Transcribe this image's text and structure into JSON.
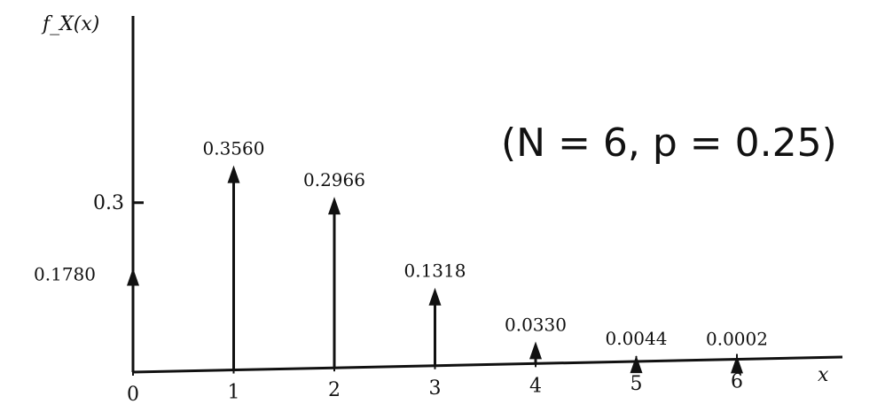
{
  "chart_data": {
    "type": "bar",
    "style": "impulse (stem) plot with arrowheads",
    "ylabel": "f_X(x)",
    "xlabel": "x",
    "annotation": "(N = 6, p = 0.25)",
    "x": [
      0,
      1,
      2,
      3,
      4,
      5,
      6
    ],
    "values": [
      0.178,
      0.356,
      0.2966,
      0.1318,
      0.033,
      0.0044,
      0.0002
    ],
    "value_labels": [
      "0.1780",
      "0.3560",
      "0.2966",
      "0.1318",
      "0.0330",
      "0.0044",
      "0.0002"
    ],
    "x_tick_labels": [
      "0",
      "1",
      "2",
      "3",
      "4",
      "5",
      "6"
    ],
    "y_ticks": [
      0.3
    ],
    "y_tick_labels": [
      "0.3"
    ],
    "ylim": [
      0,
      0.4
    ],
    "grid": false,
    "legend": "none"
  }
}
